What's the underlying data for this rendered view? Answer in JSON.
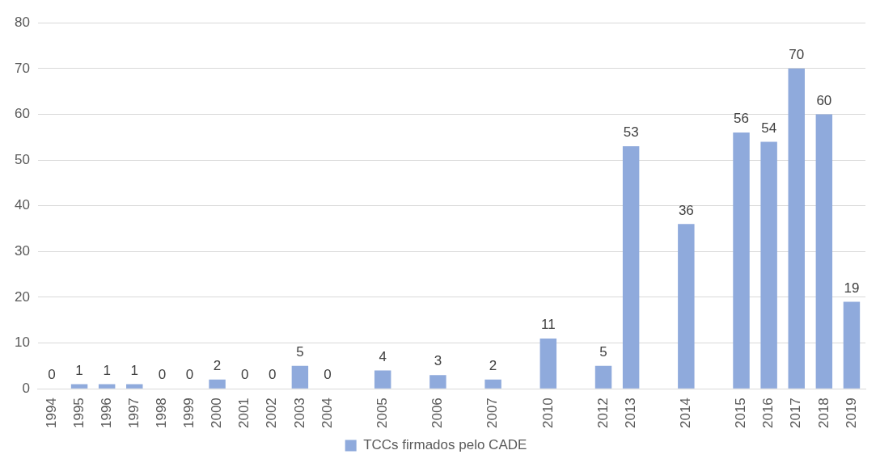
{
  "chart_data": {
    "type": "bar",
    "categories": [
      "1994",
      "1995",
      "1996",
      "1997",
      "1998",
      "1999",
      "2000",
      "2001",
      "2002",
      "2003",
      "2004",
      null,
      "2005",
      null,
      "2006",
      null,
      "2007",
      null,
      "2010",
      null,
      "2012",
      "2013",
      null,
      "2014",
      null,
      "2015",
      "2016",
      "2017",
      "2018",
      "2019"
    ],
    "series": [
      {
        "name": "TCCs firmados pelo CADE",
        "color": "#8faadc",
        "values": [
          0,
          1,
          1,
          1,
          0,
          0,
          2,
          0,
          0,
          5,
          0,
          null,
          4,
          null,
          3,
          null,
          2,
          null,
          11,
          null,
          5,
          53,
          null,
          36,
          null,
          56,
          54,
          70,
          60,
          19
        ]
      }
    ],
    "ylim": [
      0,
      80
    ],
    "yticks": [
      0,
      10,
      20,
      30,
      40,
      50,
      60,
      70,
      80
    ],
    "grid": "y",
    "legend": "bottom",
    "data_labels": true
  }
}
